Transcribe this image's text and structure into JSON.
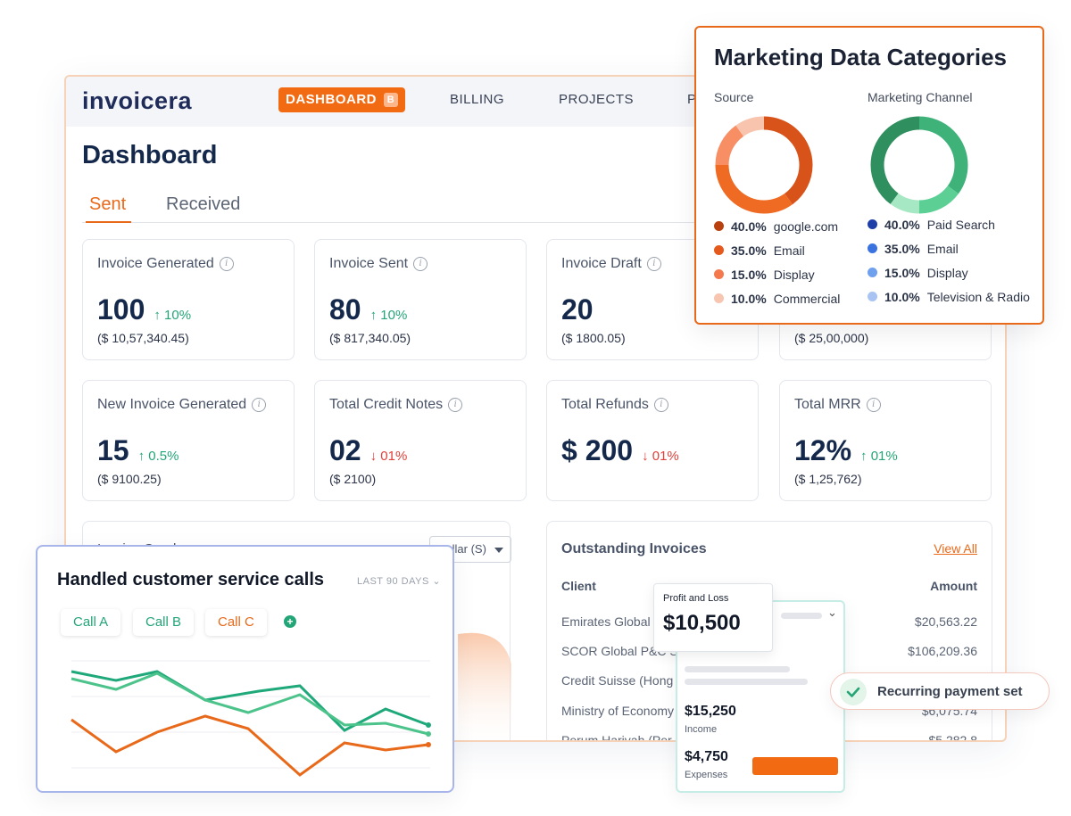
{
  "app": {
    "logo": "invoicera",
    "nav": {
      "dashboard": "DASHBOARD",
      "dashboard_badge": "B",
      "billing": "BILLING",
      "projects": "PROJECTS",
      "p_truncated": "P"
    },
    "page_title": "Dashboard",
    "tabs": {
      "sent": "Sent",
      "received": "Received"
    },
    "cards": [
      {
        "title": "Invoice Generated",
        "value": "100",
        "change": "↑ 10%",
        "sub": "($ 10,57,340.45)"
      },
      {
        "title": "Invoice Sent",
        "value": "80",
        "change": "↑ 10%",
        "sub": "($ 817,340.05)"
      },
      {
        "title": "Invoice Draft",
        "value": "20",
        "change": "",
        "sub": "($ 1800.05)"
      },
      {
        "title": "",
        "value": "",
        "change": "",
        "sub": "($ 25,00,000)"
      },
      {
        "title": "New Invoice Generated",
        "value": "15",
        "change": "↑ 0.5%",
        "sub": "($ 9100.25)"
      },
      {
        "title": "Total Credit Notes",
        "value": "02",
        "change": "↓ 01%",
        "sub": "($ 2100)"
      },
      {
        "title": "Total Refunds",
        "value": "$ 200",
        "change": "↓ 01%",
        "sub": ""
      },
      {
        "title": "Total MRR",
        "value": "12%",
        "change": "↑ 01%",
        "sub": "($ 1,25,762)"
      }
    ],
    "invoice_graph": {
      "title": "Invoice Graph",
      "currency_select": "Dollar (S)"
    },
    "outstanding": {
      "title": "Outstanding Invoices",
      "view_all": "View All",
      "col_client": "Client",
      "col_amount": "Amount",
      "rows": [
        {
          "client": "Emirates Global",
          "amount": "$20,563.22"
        },
        {
          "client": "SCOR Global P&C S",
          "amount": "$106,209.36"
        },
        {
          "client": "Credit Suisse (Hong",
          "amount": ""
        },
        {
          "client": "Ministry of Economy",
          "amount": "$6,075.74"
        },
        {
          "client": "Perum Harivah (Per",
          "amount": "$5,282.8"
        }
      ]
    }
  },
  "marketing": {
    "title": "Marketing Data Categories",
    "source": {
      "heading": "Source",
      "items": [
        {
          "pct": "40.0%",
          "label": "google.com",
          "color": "#b8410f"
        },
        {
          "pct": "35.0%",
          "label": "Email",
          "color": "#e55a1c"
        },
        {
          "pct": "15.0%",
          "label": "Display",
          "color": "#f47a4d"
        },
        {
          "pct": "10.0%",
          "label": "Commercial",
          "color": "#f7c5b0"
        }
      ]
    },
    "channel": {
      "heading": "Marketing Channel",
      "items": [
        {
          "pct": "40.0%",
          "label": "Paid Search",
          "color": "#1f3fa8"
        },
        {
          "pct": "35.0%",
          "label": "Email",
          "color": "#3a73e0"
        },
        {
          "pct": "15.0%",
          "label": "Display",
          "color": "#6ea0ee"
        },
        {
          "pct": "10.0%",
          "label": "Television & Radio",
          "color": "#a9c4f3"
        }
      ]
    },
    "source_ring_colors": [
      "#d8531a",
      "#ef6a23",
      "#f88e64",
      "#f9c4ae"
    ],
    "channel_ring_colors": [
      "#2f8f5e",
      "#3fb27a",
      "#5bcf94",
      "#a6e8c3"
    ]
  },
  "calls": {
    "title": "Handled customer service calls",
    "range": "LAST 90 DAYS",
    "chips": [
      {
        "label": "Call A",
        "color": "#23a577"
      },
      {
        "label": "Call B",
        "color": "#23a577"
      },
      {
        "label": "Call C",
        "color": "#e8691a"
      }
    ]
  },
  "pnl": {
    "label": "Profit and Loss",
    "value": "$10,500",
    "income_value": "$15,250",
    "income_label": "Income",
    "expenses_value": "$4,750",
    "expenses_label": "Expenses"
  },
  "toast": {
    "text": "Recurring payment set"
  }
}
